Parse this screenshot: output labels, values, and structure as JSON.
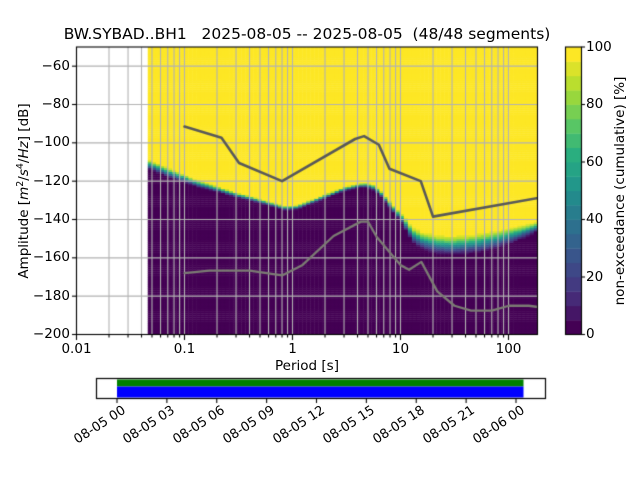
{
  "title": "BW.SYBAD..BH1   2025-08-05 -- 2025-08-05  (48/48 segments)",
  "chart_data": {
    "type": "heatmap",
    "title": "BW.SYBAD..BH1   2025-08-05 -- 2025-08-05  (48/48 segments)",
    "station_id": "BW.SYBAD..BH1",
    "date_range": "2025-08-05 -- 2025-08-05",
    "segments": "48/48",
    "xlabel": "Period [s]",
    "ylabel": "Amplitude [m²/s⁴/Hz] [dB]",
    "ylabel_parts": [
      {
        "text": "Amplitude [",
        "style": "normal"
      },
      {
        "text": "m",
        "style": "italic"
      },
      {
        "text": "2",
        "style": "sup"
      },
      {
        "text": "/",
        "style": "normal"
      },
      {
        "text": "s",
        "style": "italic"
      },
      {
        "text": "4",
        "style": "sup"
      },
      {
        "text": "/",
        "style": "normal"
      },
      {
        "text": "Hz",
        "style": "italic"
      },
      {
        "text": "] [dB]",
        "style": "normal"
      }
    ],
    "x_scale": "log",
    "x_range": [
      0.01,
      185
    ],
    "y_range": [
      -200,
      -50
    ],
    "x_ticks": [
      {
        "value": 0.01,
        "label": "0.01"
      },
      {
        "value": 0.1,
        "label": "0.1"
      },
      {
        "value": 1,
        "label": "1"
      },
      {
        "value": 10,
        "label": "10"
      },
      {
        "value": 100,
        "label": "100"
      }
    ],
    "y_ticks": [
      {
        "value": -60,
        "label": "−60"
      },
      {
        "value": -80,
        "label": "−80"
      },
      {
        "value": -100,
        "label": "−100"
      },
      {
        "value": -120,
        "label": "−120"
      },
      {
        "value": -140,
        "label": "−140"
      },
      {
        "value": -160,
        "label": "−160"
      },
      {
        "value": -180,
        "label": "−180"
      },
      {
        "value": -200,
        "label": "−200"
      }
    ],
    "grid": true,
    "grid_color": "#b2b2b2",
    "data_period_range": [
      0.0457,
      185
    ],
    "period_step_octaves": 0.125,
    "db_bin_width_db": 1,
    "colormap": "viridis",
    "colormap_anchors": [
      "#440154",
      "#46327e",
      "#3b528b",
      "#2c728e",
      "#21918c",
      "#27ad81",
      "#5ec962",
      "#addc30",
      "#fde725"
    ],
    "cumulative_boundary_db50": [
      [
        0.046,
        -111
      ],
      [
        0.065,
        -114.5
      ],
      [
        0.09,
        -117.5
      ],
      [
        0.13,
        -121
      ],
      [
        0.2,
        -124
      ],
      [
        0.3,
        -127
      ],
      [
        0.45,
        -129.5
      ],
      [
        0.65,
        -132
      ],
      [
        0.85,
        -134
      ],
      [
        1.1,
        -133.5
      ],
      [
        1.6,
        -130
      ],
      [
        2.2,
        -127
      ],
      [
        3.0,
        -124
      ],
      [
        4.5,
        -121.8
      ],
      [
        5.5,
        -122.8
      ],
      [
        6.5,
        -126
      ],
      [
        8.5,
        -134
      ],
      [
        10.5,
        -140
      ],
      [
        13,
        -148
      ],
      [
        16,
        -151
      ],
      [
        22,
        -153
      ],
      [
        30,
        -153.5
      ],
      [
        50,
        -152.5
      ],
      [
        75,
        -150.5
      ],
      [
        110,
        -148
      ],
      [
        150,
        -145.5
      ],
      [
        185,
        -143.5
      ]
    ],
    "transition_halfwidth_db": [
      [
        0.046,
        3.5
      ],
      [
        0.1,
        3
      ],
      [
        0.2,
        2
      ],
      [
        0.5,
        1.5
      ],
      [
        4.5,
        1.5
      ],
      [
        6,
        2
      ],
      [
        8.5,
        2.5
      ],
      [
        10.5,
        3.5
      ],
      [
        13,
        5.5
      ],
      [
        20,
        6.5
      ],
      [
        60,
        6.5
      ],
      [
        110,
        5.5
      ],
      [
        185,
        3.5
      ]
    ],
    "noise_models": {
      "nhnm": {
        "name": "Peterson NHNM",
        "color": "#595959",
        "points": [
          [
            0.1,
            -91.5
          ],
          [
            0.22,
            -97.4
          ],
          [
            0.32,
            -110.5
          ],
          [
            0.8,
            -120.0
          ],
          [
            3.8,
            -98.0
          ],
          [
            4.6,
            -96.5
          ],
          [
            6.3,
            -101.0
          ],
          [
            7.9,
            -113.5
          ],
          [
            15.4,
            -120.0
          ],
          [
            20.0,
            -138.5
          ],
          [
            354.8,
            -126.0
          ]
        ]
      },
      "nlnm": {
        "name": "Peterson NLNM",
        "color": "#7b7b73",
        "points": [
          [
            0.1,
            -168.0
          ],
          [
            0.17,
            -166.7
          ],
          [
            0.4,
            -166.7
          ],
          [
            0.8,
            -169.2
          ],
          [
            1.24,
            -163.7
          ],
          [
            2.4,
            -148.6
          ],
          [
            4.3,
            -141.1
          ],
          [
            5.0,
            -141.1
          ],
          [
            6.0,
            -149.0
          ],
          [
            10.0,
            -163.8
          ],
          [
            12.0,
            -166.2
          ],
          [
            15.6,
            -162.1
          ],
          [
            21.9,
            -177.5
          ],
          [
            31.6,
            -185.0
          ],
          [
            45.0,
            -187.5
          ],
          [
            70.0,
            -187.5
          ],
          [
            101.0,
            -185.0
          ],
          [
            154.0,
            -185.0
          ],
          [
            328.0,
            -187.5
          ]
        ]
      }
    },
    "colorbar": {
      "label": "non-exceedance (cumulative) [%]",
      "steps": 20,
      "range": [
        0,
        100
      ],
      "ticks": [
        {
          "value": 0,
          "label": "0"
        },
        {
          "value": 20,
          "label": "20"
        },
        {
          "value": 40,
          "label": "40"
        },
        {
          "value": 60,
          "label": "60"
        },
        {
          "value": 80,
          "label": "80"
        },
        {
          "value": 100,
          "label": "100"
        }
      ]
    },
    "timeline": {
      "tick_labels": [
        "08-05 00",
        "08-05 03",
        "08-05 06",
        "08-05 09",
        "08-05 12",
        "08-05 15",
        "08-05 18",
        "08-05 21",
        "08-06 00"
      ],
      "bar_top_color": "#008000",
      "bar_bottom_color": "#0000ff",
      "border_color": "#000000",
      "background_color": "#ffffff"
    }
  }
}
